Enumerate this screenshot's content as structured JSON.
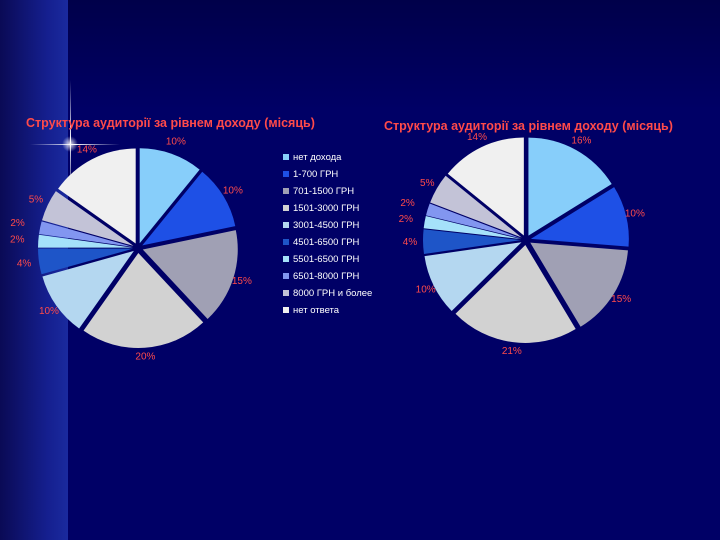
{
  "chart_data": [
    {
      "type": "pie",
      "title": "Структура аудиторії за рівнем доходу  (місяць)",
      "slices": [
        {
          "name": "нет дохода",
          "value": 10,
          "label": "10%",
          "color": "#87cefa"
        },
        {
          "name": "1-700 ГРН",
          "value": 10,
          "label": "10%",
          "color": "#1e50e6"
        },
        {
          "name": "701-1500 ГРН",
          "value": 15,
          "label": "15%",
          "color": "#a0a0b4"
        },
        {
          "name": "1501-3000 ГРН",
          "value": 20,
          "label": "20%",
          "color": "#d2d2d2"
        },
        {
          "name": "3001-4500 ГРН",
          "value": 10,
          "label": "10%",
          "color": "#b4d7f0"
        },
        {
          "name": "4501-6500 ГРН",
          "value": 4,
          "label": "4%",
          "color": "#1e55c8"
        },
        {
          "name": "5501-6500 ГРН",
          "value": 2,
          "label": "2%",
          "color": "#a5e1fa"
        },
        {
          "name": "6501-8000 ГРН",
          "value": 2,
          "label": "2%",
          "color": "#8296f0"
        },
        {
          "name": "8000 ГРН и более",
          "value": 5,
          "label": "5%",
          "color": "#c3c3d7"
        },
        {
          "name": "нет ответа",
          "value": 14,
          "label": "14%",
          "color": "#f0f0f0"
        }
      ]
    },
    {
      "type": "pie",
      "title": "Структура аудиторії за рівнем доходу  (місяць)",
      "slices": [
        {
          "name": "нет дохода",
          "value": 16,
          "label": "16%",
          "color": "#87cefa"
        },
        {
          "name": "1-700 ГРН",
          "value": 10,
          "label": "10%",
          "color": "#1e50e6"
        },
        {
          "name": "701-1500 ГРН",
          "value": 15,
          "label": "15%",
          "color": "#a0a0b4"
        },
        {
          "name": "1501-3000 ГРН",
          "value": 21,
          "label": "21%",
          "color": "#d2d2d2"
        },
        {
          "name": "3001-4500 ГРН",
          "value": 10,
          "label": "10%",
          "color": "#b4d7f0"
        },
        {
          "name": "4501-6500 ГРН",
          "value": 4,
          "label": "4%",
          "color": "#1e55c8"
        },
        {
          "name": "5501-6500 ГРН",
          "value": 2,
          "label": "2%",
          "color": "#a5e1fa"
        },
        {
          "name": "6501-8000 ГРН",
          "value": 2,
          "label": "2%",
          "color": "#8296f0"
        },
        {
          "name": "8000 ГРН и более",
          "value": 5,
          "label": "5%",
          "color": "#c3c3d7"
        },
        {
          "name": "нет ответа",
          "value": 14,
          "label": "14%",
          "color": "#f0f0f0"
        }
      ]
    }
  ],
  "legend": {
    "items": [
      "нет дохода",
      "1-700 ГРН",
      "701-1500 ГРН",
      "1501-3000 ГРН",
      "3001-4500 ГРН",
      "4501-6500 ГРН",
      "5501-6500 ГРН",
      "6501-8000 ГРН",
      "8000 ГРН и более",
      "нет ответа"
    ]
  },
  "colors": {
    "background": "#000066",
    "label_text": "#ff4a4a",
    "legend_text": "#ffffff"
  }
}
